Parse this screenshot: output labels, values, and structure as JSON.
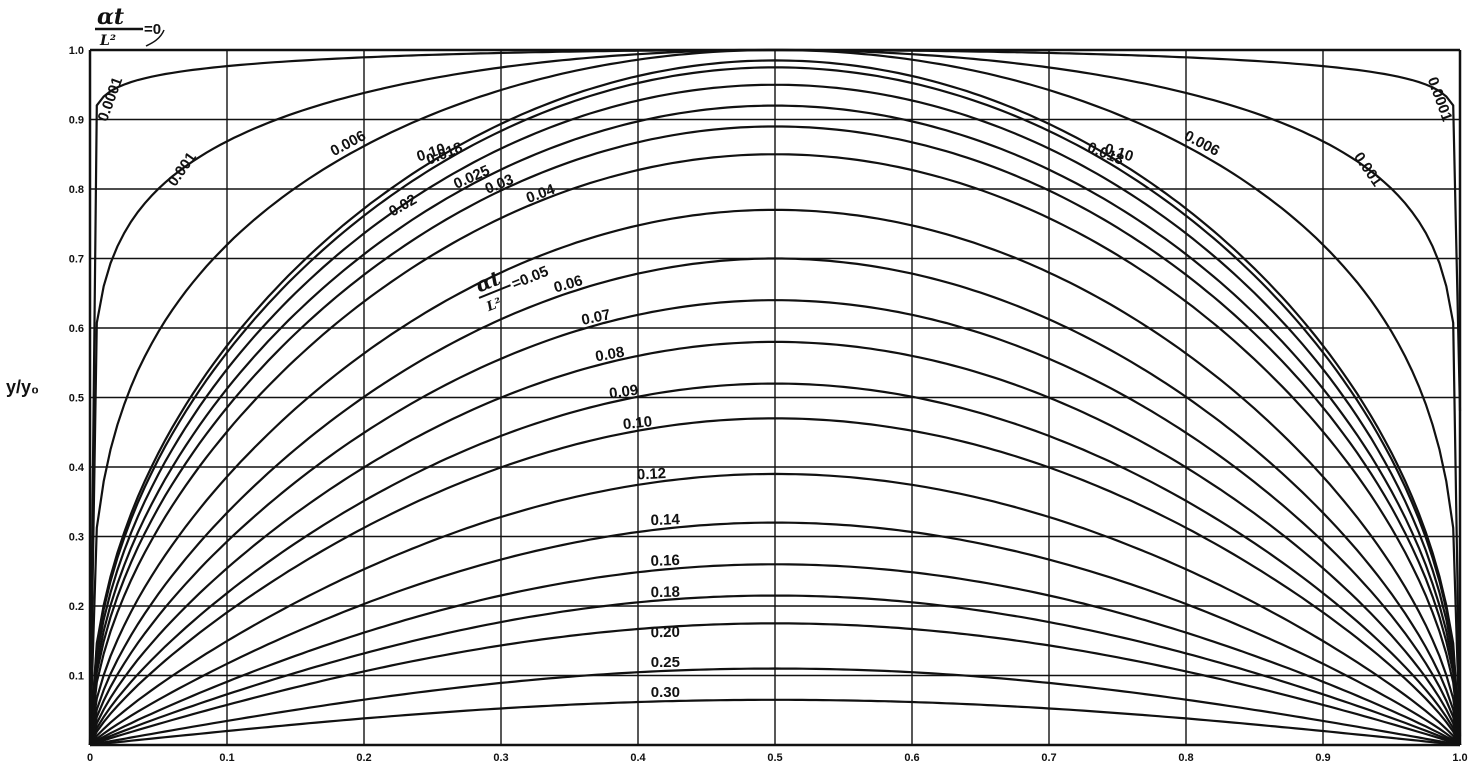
{
  "chart_data": {
    "type": "line",
    "title": "",
    "xlabel": "",
    "ylabel": "y/y₀",
    "xlim": [
      0,
      1
    ],
    "ylim": [
      0,
      1
    ],
    "grid": true,
    "x_ticks": [
      "0",
      "0.1",
      "0.2",
      "0.3",
      "0.4",
      "0.5",
      "0.6",
      "0.7",
      "0.8",
      "0.9",
      "1.0"
    ],
    "y_ticks": [
      "0.1",
      "0.2",
      "0.3",
      "0.4",
      "0.5",
      "0.6",
      "0.7",
      "0.8",
      "0.9",
      "1.0"
    ],
    "parameter_label": "αt/L²",
    "parameter_annotations": [
      "αt/L² = 0",
      "αt/L² = 0.05"
    ],
    "series": [
      {
        "name": "0.0001",
        "peak": 1.0
      },
      {
        "name": "0.001",
        "peak": 1.0
      },
      {
        "name": "0.006",
        "peak": 1.0
      },
      {
        "name": "0.10",
        "peak": 0.985
      },
      {
        "name": "0.018",
        "peak": 0.975
      },
      {
        "name": "0.02",
        "peak": 0.95
      },
      {
        "name": "0.025",
        "peak": 0.92
      },
      {
        "name": "0.03",
        "peak": 0.89
      },
      {
        "name": "0.04",
        "peak": 0.85
      },
      {
        "name": "0.05",
        "peak": 0.77
      },
      {
        "name": "0.06",
        "peak": 0.7
      },
      {
        "name": "0.07",
        "peak": 0.64
      },
      {
        "name": "0.08",
        "peak": 0.58
      },
      {
        "name": "0.09",
        "peak": 0.52
      },
      {
        "name": "0.10",
        "peak": 0.47
      },
      {
        "name": "0.12",
        "peak": 0.39
      },
      {
        "name": "0.14",
        "peak": 0.32
      },
      {
        "name": "0.16",
        "peak": 0.26
      },
      {
        "name": "0.18",
        "peak": 0.215
      },
      {
        "name": "0.20",
        "peak": 0.175
      },
      {
        "name": "0.25",
        "peak": 0.11
      },
      {
        "name": "0.30",
        "peak": 0.065
      }
    ]
  }
}
